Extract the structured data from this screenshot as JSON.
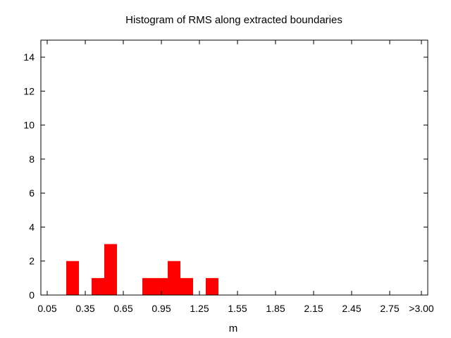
{
  "chart_data": {
    "type": "bar",
    "title": "Histogram of RMS along extracted boundaries",
    "xlabel": "m",
    "ylabel": "",
    "x_tick_labels": [
      "0.05",
      "0.35",
      "0.65",
      "0.95",
      "1.25",
      "1.55",
      "1.85",
      "2.15",
      "2.45",
      "2.75",
      ">3.00"
    ],
    "x_tick_values": [
      0.05,
      0.35,
      0.65,
      0.95,
      1.25,
      1.55,
      1.85,
      2.15,
      2.45,
      2.75,
      3.0
    ],
    "y_tick_labels": [
      "0",
      "2",
      "4",
      "6",
      "8",
      "10",
      "12",
      "14"
    ],
    "y_tick_values": [
      0,
      2,
      4,
      6,
      8,
      10,
      12,
      14
    ],
    "xlim": [
      0.0,
      3.05
    ],
    "ylim": [
      0,
      15
    ],
    "bin_width": 0.1,
    "bins": [
      {
        "start": 0.2,
        "end": 0.3,
        "count": 2
      },
      {
        "start": 0.4,
        "end": 0.5,
        "count": 1
      },
      {
        "start": 0.5,
        "end": 0.6,
        "count": 3
      },
      {
        "start": 0.8,
        "end": 0.9,
        "count": 1
      },
      {
        "start": 0.9,
        "end": 1.0,
        "count": 1
      },
      {
        "start": 1.0,
        "end": 1.1,
        "count": 2
      },
      {
        "start": 1.1,
        "end": 1.2,
        "count": 1
      },
      {
        "start": 1.3,
        "end": 1.4,
        "count": 1
      }
    ],
    "bar_color": "#ff0000",
    "grid": false,
    "legend": "none"
  }
}
